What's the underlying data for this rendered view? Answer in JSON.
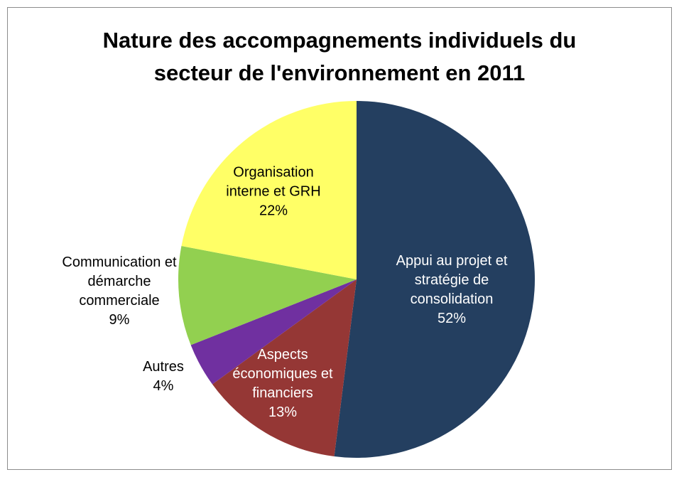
{
  "chart_data": {
    "type": "pie",
    "title": "Nature des accompagnements individuels du secteur de l'environnement en 2011",
    "categories": [
      "Appui au projet et stratégie de consolidation",
      "Aspects économiques et financiers",
      "Autres",
      "Communication et démarche commerciale",
      "Organisation interne et GRH"
    ],
    "values": [
      52,
      13,
      4,
      9,
      22
    ],
    "value_labels": [
      "52%",
      "13%",
      "4%",
      "9%",
      "22%"
    ],
    "colors": [
      "#243f60",
      "#953735",
      "#7030a0",
      "#92d050",
      "#ffff66"
    ]
  }
}
